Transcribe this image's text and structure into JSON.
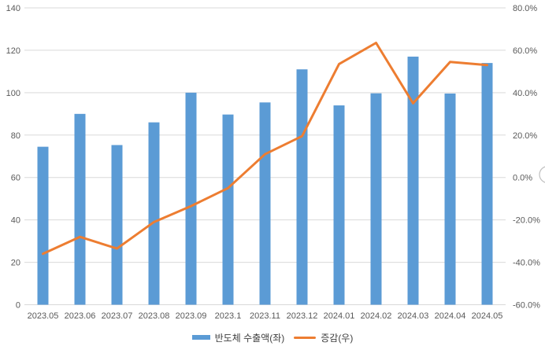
{
  "chart_data": {
    "type": "bar",
    "subtype": "combo-bar-line",
    "title": "",
    "categories": [
      "2023.05",
      "2023.06",
      "2023.07",
      "2023.08",
      "2023.09",
      "2023.1",
      "2023.11",
      "2023.12",
      "2024.01",
      "2024.02",
      "2024.03",
      "2024.04",
      "2024.05"
    ],
    "series": [
      {
        "name": "반도체 수출액(좌)",
        "type": "bar",
        "axis": "left",
        "color": "#5B9BD5",
        "values": [
          74.5,
          90,
          75.3,
          86,
          100,
          89.7,
          95.4,
          111,
          94,
          99.7,
          117,
          99.6,
          114
        ]
      },
      {
        "name": "증감(우)",
        "type": "line",
        "axis": "right",
        "color": "#ED7D31",
        "unit": "%",
        "values": [
          -36,
          -28,
          -33.5,
          -21,
          -13.5,
          -5,
          11,
          19.5,
          53.5,
          63.5,
          35,
          54.5,
          53
        ]
      }
    ],
    "left_axis": {
      "min": 0,
      "max": 140,
      "step": 20,
      "ticks": [
        "0",
        "20",
        "40",
        "60",
        "80",
        "100",
        "120",
        "140"
      ]
    },
    "right_axis": {
      "min": -60,
      "max": 80,
      "step": 20,
      "ticks": [
        "-60.0%",
        "-40.0%",
        "-20.0%",
        "0.0%",
        "20.0%",
        "40.0%",
        "60.0%",
        "80.0%"
      ]
    },
    "grid": true,
    "legend_position": "bottom",
    "colors": {
      "grid": "#D9D9D9",
      "axis_text": "#595959",
      "background": "#FFFFFF",
      "artifact": "#BFBFBF"
    }
  }
}
